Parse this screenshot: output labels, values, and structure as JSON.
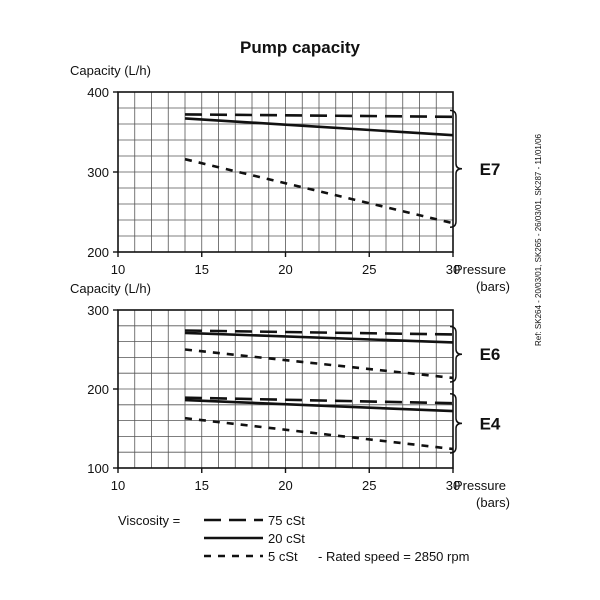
{
  "chart_data": {
    "type": "line",
    "title": "Pump capacity",
    "ref_note": "Ref: SK264 - 20/03/01, SK265 - 26/03/01, SK287 - 11/01/06",
    "legend": {
      "label": "Viscosity =",
      "entries": [
        {
          "style": "long-dash",
          "label": "75 cSt"
        },
        {
          "style": "solid",
          "label": "20 cSt"
        },
        {
          "style": "short-dash",
          "label": "5 cSt"
        }
      ],
      "note": "-  Rated speed = 2850 rpm"
    },
    "panels": [
      {
        "ylabel": "Capacity  (L/h)",
        "xlabel": "Pressure",
        "xunit": "(bars)",
        "xlim": [
          10,
          30
        ],
        "ylim": [
          200,
          400
        ],
        "xticks": [
          "10",
          "15",
          "20",
          "25",
          "30"
        ],
        "yticks": [
          "200",
          "300",
          "400"
        ],
        "groups": [
          {
            "label": "E7",
            "series": [
              {
                "viscosity": "75 cSt",
                "x": [
                  14,
                  30
                ],
                "y": [
                  372,
                  369
                ]
              },
              {
                "viscosity": "20 cSt",
                "x": [
                  14,
                  30
                ],
                "y": [
                  367,
                  346
                ]
              },
              {
                "viscosity": "5 cSt",
                "x": [
                  14,
                  30
                ],
                "y": [
                  316,
                  236
                ]
              }
            ]
          }
        ]
      },
      {
        "ylabel": "Capacity  (L/h)",
        "xlabel": "Pressure",
        "xunit": "(bars)",
        "xlim": [
          10,
          30
        ],
        "ylim": [
          100,
          300
        ],
        "xticks": [
          "10",
          "15",
          "20",
          "25",
          "30"
        ],
        "yticks": [
          "100",
          "200",
          "300"
        ],
        "groups": [
          {
            "label": "E6",
            "series": [
              {
                "viscosity": "75 cSt",
                "x": [
                  14,
                  30
                ],
                "y": [
                  274,
                  269
                ]
              },
              {
                "viscosity": "20 cSt",
                "x": [
                  14,
                  30
                ],
                "y": [
                  271,
                  259
                ]
              },
              {
                "viscosity": "5 cSt",
                "x": [
                  14,
                  30
                ],
                "y": [
                  250,
                  214
                ]
              }
            ]
          },
          {
            "label": "E4",
            "series": [
              {
                "viscosity": "75 cSt",
                "x": [
                  14,
                  30
                ],
                "y": [
                  189,
                  182
                ]
              },
              {
                "viscosity": "20 cSt",
                "x": [
                  14,
                  30
                ],
                "y": [
                  186,
                  172
                ]
              },
              {
                "viscosity": "5 cSt",
                "x": [
                  14,
                  30
                ],
                "y": [
                  163,
                  124
                ]
              }
            ]
          }
        ]
      }
    ]
  }
}
